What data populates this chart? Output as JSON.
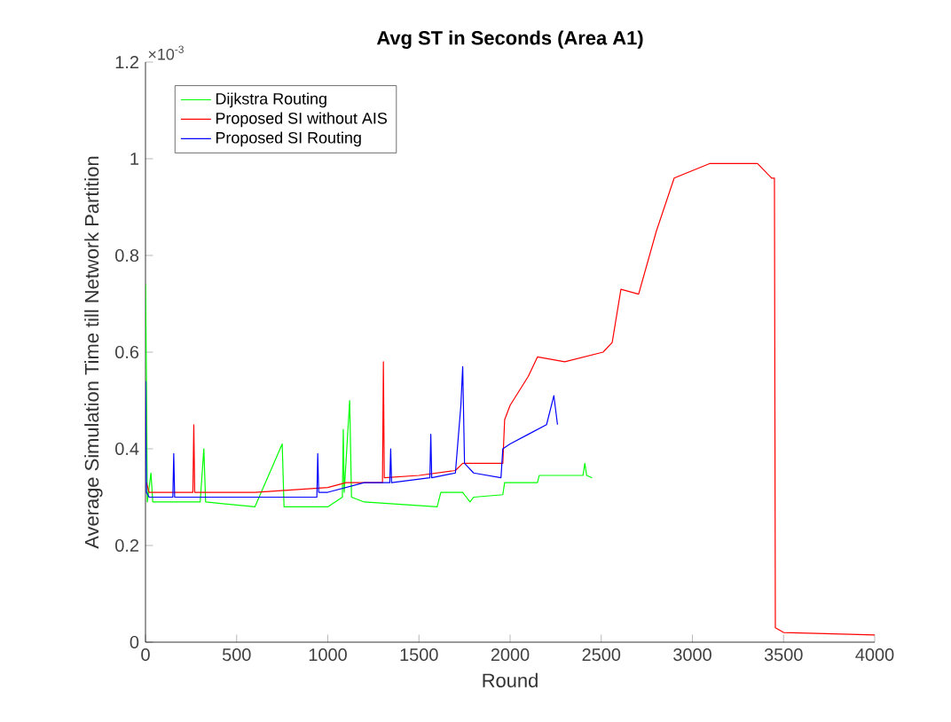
{
  "chart_data": {
    "type": "line",
    "title": "Avg ST in Seconds (Area A1)",
    "xlabel": "Round",
    "ylabel": "Average Simulation Time till Network Partition",
    "annotations": [
      "×10$^{-3}$"
    ],
    "xlim": [
      0,
      4000
    ],
    "ylim": [
      0,
      1.2
    ],
    "xticks": [
      0,
      500,
      1000,
      1500,
      2000,
      2500,
      3000,
      3500,
      4000
    ],
    "yticks": [
      0,
      0.2,
      0.4,
      0.6,
      0.8,
      1,
      1.2
    ],
    "legend": "top left",
    "series": [
      {
        "name": "Dijkstra Routing",
        "color": "#00ff00",
        "x": [
          0,
          5,
          10,
          30,
          40,
          300,
          320,
          330,
          600,
          750,
          760,
          1000,
          1080,
          1085,
          1090,
          1120,
          1130,
          1200,
          1600,
          1620,
          1740,
          1745,
          1760,
          1780,
          1800,
          1960,
          1970,
          2150,
          2160,
          2400,
          2410,
          2420,
          2450
        ],
        "values": [
          0.74,
          0.55,
          0.29,
          0.35,
          0.29,
          0.29,
          0.4,
          0.29,
          0.28,
          0.41,
          0.28,
          0.28,
          0.3,
          0.44,
          0.31,
          0.5,
          0.3,
          0.29,
          0.28,
          0.31,
          0.31,
          null,
          0.3,
          0.29,
          0.3,
          0.305,
          0.33,
          0.33,
          0.345,
          0.345,
          0.37,
          0.345,
          0.34
        ]
      },
      {
        "name": "Proposed SI without AIS",
        "color": "#ff0000",
        "x": [
          5,
          20,
          260,
          265,
          270,
          600,
          1000,
          1100,
          1300,
          1305,
          1310,
          1500,
          1700,
          1740,
          1900,
          1960,
          1970,
          2000,
          2100,
          2150,
          2300,
          2510,
          2560,
          2608,
          2705,
          2802,
          2900,
          3094,
          3357,
          3435,
          3450,
          3455,
          3500,
          4000
        ],
        "values": [
          0.33,
          0.31,
          0.31,
          0.45,
          0.31,
          0.31,
          0.32,
          0.33,
          0.33,
          0.58,
          0.34,
          0.345,
          0.355,
          0.37,
          0.37,
          0.37,
          0.46,
          0.49,
          0.55,
          0.59,
          0.58,
          0.6,
          0.62,
          0.73,
          0.72,
          0.85,
          0.96,
          0.99,
          0.99,
          0.96,
          0.96,
          0.03,
          0.02,
          0.015
        ]
      },
      {
        "name": "Proposed SI Routing",
        "color": "#0000ff",
        "x": [
          0,
          5,
          20,
          150,
          155,
          160,
          600,
          940,
          945,
          950,
          1000,
          1200,
          1340,
          1345,
          1350,
          1560,
          1565,
          1570,
          1700,
          1730,
          1740,
          1750,
          1800,
          1950,
          1960,
          2000,
          2100,
          2200,
          2240,
          2260
        ],
        "values": [
          0.54,
          0.31,
          0.3,
          0.3,
          0.39,
          0.3,
          0.3,
          0.3,
          0.39,
          0.31,
          0.31,
          0.33,
          0.33,
          0.4,
          0.33,
          0.34,
          0.43,
          0.34,
          0.35,
          0.49,
          0.57,
          0.37,
          0.35,
          0.34,
          0.4,
          0.41,
          0.43,
          0.45,
          0.51,
          0.45
        ]
      }
    ]
  }
}
